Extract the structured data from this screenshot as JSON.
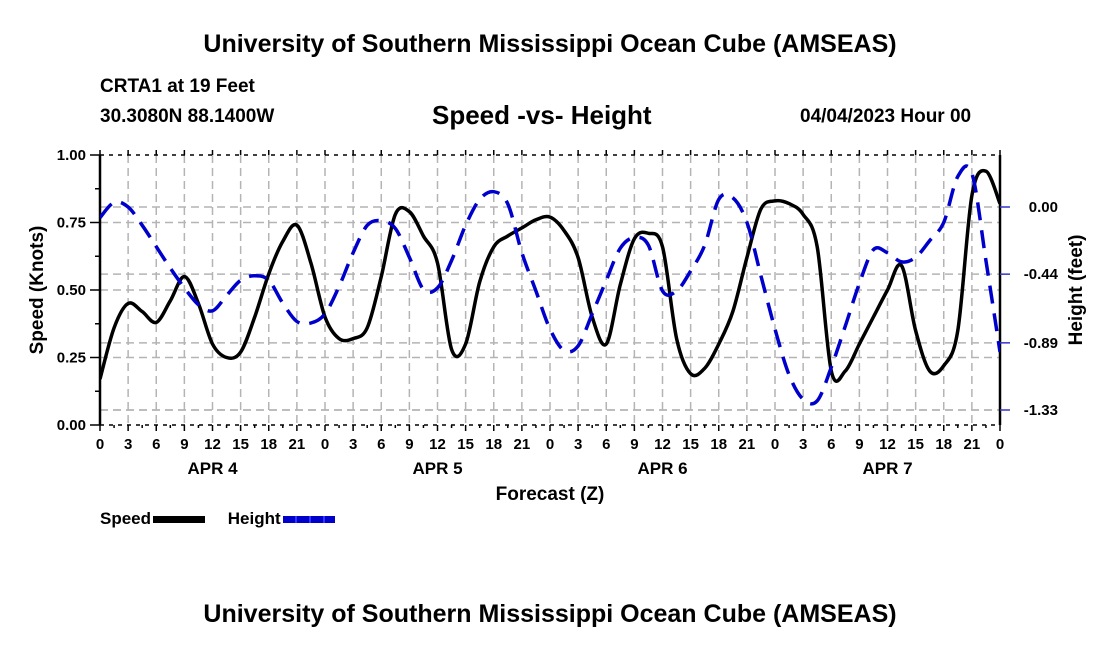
{
  "header": {
    "title": "University of Southern Mississippi Ocean Cube (AMSEAS)",
    "station": "CRTA1 at 19 Feet",
    "coordinates": "30.3080N  88.1400W",
    "subtitle": "Speed -vs- Height",
    "datetime": "04/04/2023 Hour 00"
  },
  "footer": {
    "title": "University of Southern Mississippi Ocean Cube (AMSEAS)"
  },
  "legend": {
    "items": [
      {
        "label": "Speed",
        "color": "#000000",
        "style": "solid"
      },
      {
        "label": "Height",
        "color": "#0000cc",
        "style": "dashed"
      }
    ]
  },
  "chart_data": {
    "type": "line",
    "title": "Speed -vs- Height",
    "xlabel": "Forecast (Z)",
    "ylabel": "Speed (Knots)",
    "y2label": "Height (feet)",
    "x_unit": "forecast hour",
    "xlim": [
      0,
      96
    ],
    "ylim": [
      0,
      1.0
    ],
    "y2lim": [
      -1.48,
      0.31
    ],
    "grid": true,
    "legend_position": "bottom-left",
    "x_tick_labels": [
      "0",
      "3",
      "6",
      "9",
      "12",
      "15",
      "18",
      "21",
      "0",
      "3",
      "6",
      "9",
      "12",
      "15",
      "18",
      "21",
      "0",
      "3",
      "6",
      "9",
      "12",
      "15",
      "18",
      "21",
      "0",
      "3",
      "6",
      "9",
      "12",
      "15",
      "18",
      "21",
      "0"
    ],
    "date_labels": [
      {
        "label": "APR 4",
        "at_hour": 12
      },
      {
        "label": "APR 5",
        "at_hour": 36
      },
      {
        "label": "APR 6",
        "at_hour": 60
      },
      {
        "label": "APR 7",
        "at_hour": 84
      }
    ],
    "y_ticks": [
      "0.00",
      "0.25",
      "0.50",
      "0.75",
      "1.00"
    ],
    "y_tick_values": [
      0,
      0.25,
      0.5,
      0.75,
      1.0
    ],
    "y2_ticks": [
      "0.00",
      "-0.44",
      "-0.89",
      "-1.33"
    ],
    "y2_tick_values": [
      0,
      -0.44,
      -0.89,
      -1.33
    ],
    "x": [
      0,
      1.5,
      3,
      4.5,
      6,
      7.5,
      9,
      10.5,
      12,
      13.5,
      15,
      16.5,
      18,
      19.5,
      21,
      22.5,
      24,
      25.5,
      27,
      28.5,
      30,
      31.5,
      33,
      34.5,
      36,
      37.5,
      39,
      40.5,
      42,
      43.5,
      45,
      46.5,
      48,
      49.5,
      51,
      52.5,
      54,
      55.5,
      57,
      58.5,
      60,
      61.5,
      63,
      64.5,
      66,
      67.5,
      69,
      70.5,
      72,
      73.5,
      75,
      76.5,
      78,
      79.5,
      81,
      82.5,
      84,
      85.5,
      87,
      88.5,
      90,
      91.5,
      93,
      94.5,
      96
    ],
    "series": [
      {
        "name": "Speed",
        "axis": "left",
        "color": "#000000",
        "style": "solid",
        "values": [
          0.17,
          0.36,
          0.45,
          0.42,
          0.38,
          0.46,
          0.55,
          0.45,
          0.3,
          0.25,
          0.27,
          0.4,
          0.56,
          0.68,
          0.74,
          0.6,
          0.4,
          0.32,
          0.32,
          0.36,
          0.55,
          0.78,
          0.79,
          0.7,
          0.6,
          0.28,
          0.3,
          0.53,
          0.66,
          0.7,
          0.73,
          0.76,
          0.77,
          0.72,
          0.62,
          0.4,
          0.3,
          0.52,
          0.69,
          0.71,
          0.66,
          0.32,
          0.19,
          0.21,
          0.3,
          0.42,
          0.62,
          0.8,
          0.83,
          0.82,
          0.78,
          0.66,
          0.2,
          0.2,
          0.3,
          0.4,
          0.5,
          0.59,
          0.35,
          0.2,
          0.22,
          0.35,
          0.85,
          0.94,
          0.82
        ]
      },
      {
        "name": "Height",
        "axis": "right",
        "color": "#0000cc",
        "style": "dashed",
        "values": [
          -0.07,
          0.03,
          0.0,
          -0.12,
          -0.26,
          -0.4,
          -0.53,
          -0.64,
          -0.68,
          -0.58,
          -0.48,
          -0.45,
          -0.48,
          -0.63,
          -0.75,
          -0.76,
          -0.7,
          -0.52,
          -0.3,
          -0.12,
          -0.09,
          -0.14,
          -0.33,
          -0.54,
          -0.53,
          -0.35,
          -0.12,
          0.05,
          0.1,
          0.02,
          -0.3,
          -0.55,
          -0.8,
          -0.94,
          -0.91,
          -0.7,
          -0.48,
          -0.27,
          -0.2,
          -0.25,
          -0.55,
          -0.55,
          -0.42,
          -0.25,
          0.05,
          0.06,
          -0.1,
          -0.45,
          -0.8,
          -1.1,
          -1.26,
          -1.27,
          -1.05,
          -0.78,
          -0.5,
          -0.28,
          -0.3,
          -0.36,
          -0.33,
          -0.22,
          -0.1,
          0.2,
          0.22,
          -0.35,
          -0.95
        ]
      }
    ]
  }
}
